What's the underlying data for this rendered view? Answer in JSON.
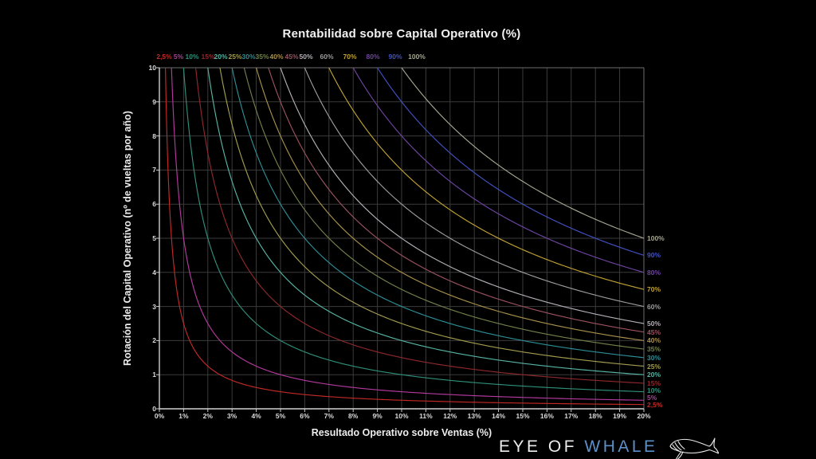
{
  "title": "Rentabilidad sobre Capital Operativo (%)",
  "x_axis": {
    "label": "Resultado Operativo sobre Ventas (%)",
    "ticks": [
      "0%",
      "1%",
      "2%",
      "3%",
      "4%",
      "5%",
      "6%",
      "7%",
      "8%",
      "9%",
      "10%",
      "11%",
      "12%",
      "13%",
      "14%",
      "15%",
      "16%",
      "17%",
      "18%",
      "19%",
      "20%"
    ]
  },
  "y_axis": {
    "label": "Rotación del Capital Operativo (nº de vueltas por año)",
    "ticks": [
      "0",
      "1",
      "2",
      "3",
      "4",
      "5",
      "6",
      "7",
      "8",
      "9",
      "10"
    ]
  },
  "branding": {
    "eye_of": "EYE OF",
    "whale": "WHALE",
    "whale_color": "#5d8fc7",
    "icon": "whale-icon"
  },
  "chart_data": {
    "type": "line",
    "title": "Rentabilidad sobre Capital Operativo (%)",
    "xlabel": "Resultado Operativo sobre Ventas (%)",
    "ylabel": "Rotación del Capital Operativo (nº de vueltas por año)",
    "xlim": [
      0,
      20
    ],
    "ylim": [
      0,
      10
    ],
    "grid": true,
    "legend_position": "labels above plot at curve entry and right of plot at curve exit",
    "relationship": "iso-ROC hyperbolas: rotation = ROC(%) / margin(%)",
    "series": [
      {
        "label": "2,5%",
        "roc": 2.5,
        "color": "#c22a26"
      },
      {
        "label": "5%",
        "roc": 5,
        "color": "#b43a9e"
      },
      {
        "label": "10%",
        "roc": 10,
        "color": "#2f8f7a"
      },
      {
        "label": "15%",
        "roc": 15,
        "color": "#8e282c"
      },
      {
        "label": "20%",
        "roc": 20,
        "color": "#56b4a4"
      },
      {
        "label": "25%",
        "roc": 25,
        "color": "#a39d4f"
      },
      {
        "label": "30%",
        "roc": 30,
        "color": "#2c8e96"
      },
      {
        "label": "35%",
        "roc": 35,
        "color": "#72814b"
      },
      {
        "label": "40%",
        "roc": 40,
        "color": "#a9914c"
      },
      {
        "label": "45%",
        "roc": 45,
        "color": "#9c5260"
      },
      {
        "label": "50%",
        "roc": 50,
        "color": "#b4aeb6"
      },
      {
        "label": "60%",
        "roc": 60,
        "color": "#9c9c9c"
      },
      {
        "label": "70%",
        "roc": 70,
        "color": "#c0a232"
      },
      {
        "label": "80%",
        "roc": 80,
        "color": "#6e45a2"
      },
      {
        "label": "90%",
        "roc": 90,
        "color": "#4251c2"
      },
      {
        "label": "100%",
        "roc": 100,
        "color": "#a6a692"
      }
    ]
  }
}
